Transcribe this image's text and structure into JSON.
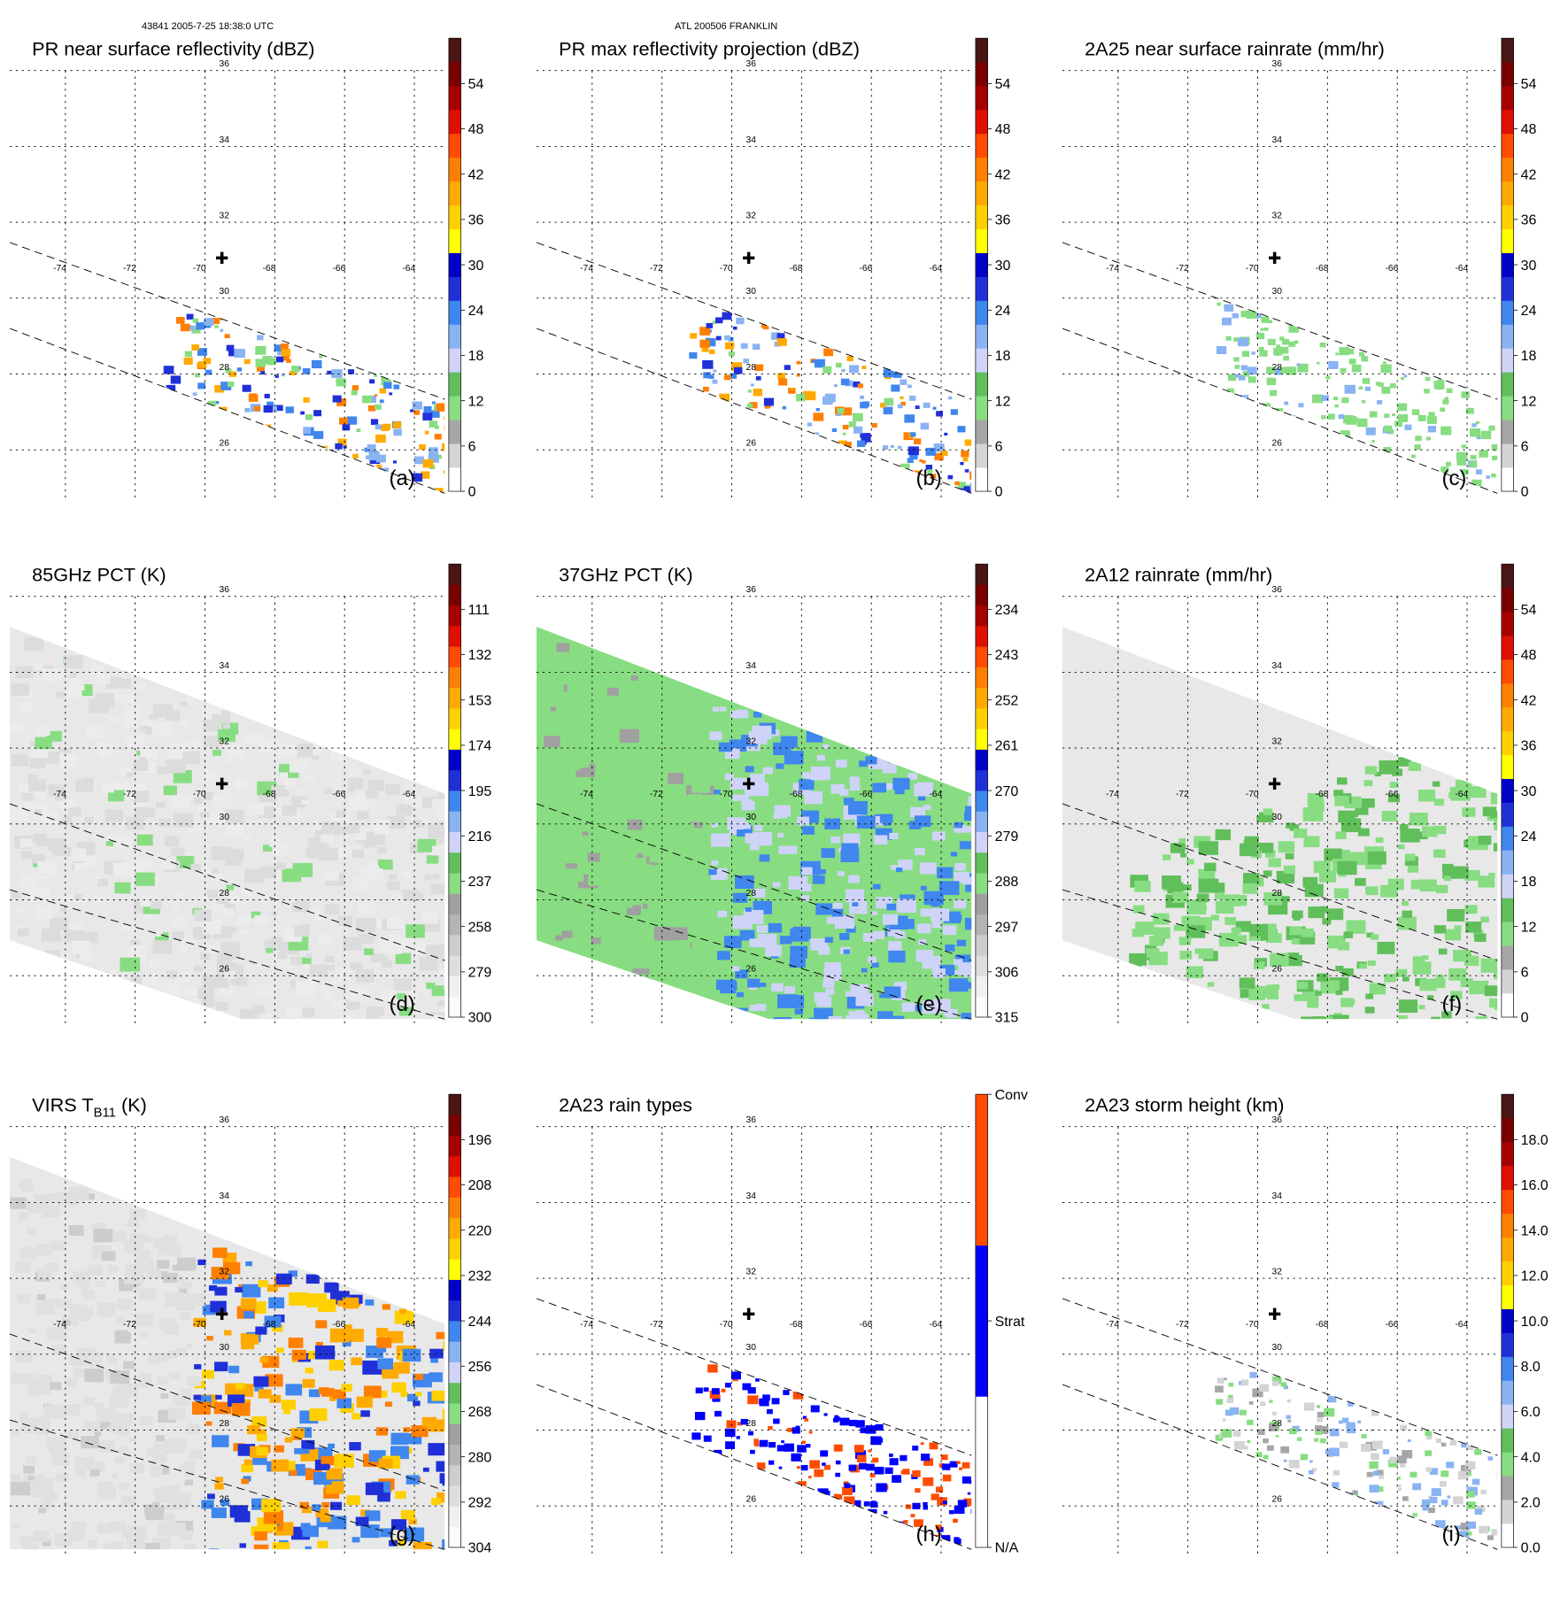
{
  "header": {
    "orbit_time": "43841 2005-7-25 18:38:0 UTC",
    "storm": "ATL 200506 FRANKLIN"
  },
  "colors": {
    "scale": [
      "#ffffff",
      "#d4d4d4",
      "#a6a6a6",
      "#88dd82",
      "#61bf5b",
      "#cfd3f8",
      "#8ab3f3",
      "#3f86ee",
      "#2030d8",
      "#0000c8",
      "#ffff00",
      "#ffd000",
      "#ffaa00",
      "#ff7f00",
      "#ff4c00",
      "#e01000",
      "#a70000",
      "#7a0000",
      "#4a1515"
    ],
    "pct": [
      "#fbfbfb",
      "#f0f0f0",
      "#dedede",
      "#cdcdcd",
      "#b4b4b4",
      "#a0a0a0",
      "#88dd82",
      "#61bf5b",
      "#cfd3f8",
      "#8ab3f3",
      "#3f86ee",
      "#2030d8",
      "#0000c8",
      "#ffff00",
      "#ffd000",
      "#ffaa00",
      "#ff7f00",
      "#ff4c00",
      "#e01000",
      "#a70000",
      "#7a0000",
      "#4a1515"
    ],
    "raintype": [
      "#ffffff",
      "#0000ff",
      "#ff4c00"
    ]
  },
  "map": {
    "lon_labels": [
      "-74",
      "-72",
      "-70",
      "-68",
      "-66",
      "-64"
    ],
    "lat_labels": [
      "36",
      "34",
      "32",
      "30",
      "28",
      "26"
    ],
    "center_marker": "✚"
  },
  "panels": [
    {
      "title": "PR near surface reflectivity (dBZ)",
      "letter": "(a)",
      "swath": "pr",
      "ticks": [
        "0",
        "6",
        "12",
        "18",
        "24",
        "30",
        "36",
        "42",
        "48",
        "54"
      ],
      "palette": "scale"
    },
    {
      "title": "PR max reflectivity projection (dBZ)",
      "letter": "(b)",
      "swath": "pr",
      "ticks": [
        "0",
        "6",
        "12",
        "18",
        "24",
        "30",
        "36",
        "42",
        "48",
        "54"
      ],
      "palette": "scale"
    },
    {
      "title": "2A25 near surface rainrate (mm/hr)",
      "letter": "(c)",
      "swath": "pr",
      "ticks": [
        "0",
        "6",
        "12",
        "18",
        "24",
        "30",
        "36",
        "42",
        "48",
        "54"
      ],
      "palette": "scale"
    },
    {
      "title": "85GHz PCT (K)",
      "letter": "(d)",
      "swath": "tmi",
      "ticks": [
        "300",
        "279",
        "258",
        "237",
        "216",
        "195",
        "174",
        "153",
        "132",
        "111"
      ],
      "palette": "pct"
    },
    {
      "title": "37GHz PCT (K)",
      "letter": "(e)",
      "swath": "tmi",
      "ticks": [
        "315",
        "306",
        "297",
        "288",
        "279",
        "270",
        "261",
        "252",
        "243",
        "234"
      ],
      "palette": "pct"
    },
    {
      "title": "2A12 rainrate (mm/hr)",
      "letter": "(f)",
      "swath": "tmi",
      "ticks": [
        "0",
        "6",
        "12",
        "18",
        "24",
        "30",
        "36",
        "42",
        "48",
        "54"
      ],
      "palette": "scale"
    },
    {
      "title": "VIRS T",
      "title_sub": "B11",
      "title_tail": " (K)",
      "letter": "(g)",
      "swath": "virs",
      "ticks": [
        "304",
        "292",
        "280",
        "268",
        "256",
        "244",
        "232",
        "220",
        "208",
        "196"
      ],
      "palette": "pct"
    },
    {
      "title": "2A23 rain types",
      "letter": "(h)",
      "swath": "pr",
      "ticks": [
        "N/A",
        "Strat",
        "Conv"
      ],
      "palette": "raintype",
      "categorical": true
    },
    {
      "title": "2A23 storm height (km)",
      "letter": "(i)",
      "swath": "pr",
      "ticks": [
        "0.0",
        "2.0",
        "4.0",
        "6.0",
        "8.0",
        "10.0",
        "12.0",
        "14.0",
        "16.0",
        "18.0"
      ],
      "palette": "scale"
    }
  ]
}
